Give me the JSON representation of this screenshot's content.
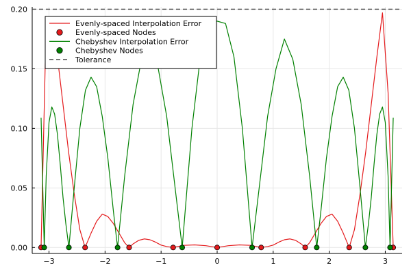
{
  "chart_data": {
    "type": "line",
    "title": "",
    "xlabel": "",
    "ylabel": "",
    "xlim": [
      -3.3,
      3.3
    ],
    "ylim": [
      -0.005,
      0.202
    ],
    "grid": true,
    "legend_position": "top-left",
    "x_ticks": [
      -3,
      -2,
      -1,
      0,
      1,
      2,
      3
    ],
    "x_tick_labels": [
      "−3",
      "−2",
      "−1",
      "0",
      "1",
      "2",
      "3"
    ],
    "y_ticks": [
      0.0,
      0.05,
      0.1,
      0.15,
      0.2
    ],
    "y_tick_labels": [
      "0.00",
      "0.05",
      "0.10",
      "0.15",
      "0.20"
    ],
    "tolerance": 0.2,
    "series": [
      {
        "name": "Evenly-spaced Interpolation Error",
        "kind": "line",
        "color": "#e41a1c",
        "x": [
          -3.1416,
          -3.05,
          -2.95,
          -2.85,
          -2.75,
          -2.65,
          -2.55,
          -2.45,
          -2.3562,
          -2.25,
          -2.15,
          -2.05,
          -1.95,
          -1.85,
          -1.75,
          -1.65,
          -1.5708,
          -1.5,
          -1.4,
          -1.3,
          -1.2,
          -1.1,
          -1.0,
          -0.9,
          -0.7854,
          -0.6,
          -0.4,
          -0.2,
          0.0,
          0.2,
          0.4,
          0.6,
          0.7854,
          0.9,
          1.0,
          1.1,
          1.2,
          1.3,
          1.4,
          1.5,
          1.5708,
          1.65,
          1.75,
          1.85,
          1.95,
          2.05,
          2.15,
          2.25,
          2.3562,
          2.45,
          2.55,
          2.65,
          2.75,
          2.85,
          2.95,
          3.05,
          3.1416
        ],
        "y": [
          0.0,
          0.19,
          0.19,
          0.16,
          0.12,
          0.08,
          0.045,
          0.015,
          0.0,
          0.012,
          0.022,
          0.028,
          0.026,
          0.02,
          0.012,
          0.004,
          0.0,
          0.003,
          0.006,
          0.0072,
          0.0065,
          0.0045,
          0.002,
          0.0008,
          0.0,
          0.0018,
          0.0022,
          0.0015,
          0.0,
          0.0015,
          0.0022,
          0.0018,
          0.0,
          0.0008,
          0.002,
          0.0045,
          0.0065,
          0.0072,
          0.006,
          0.003,
          0.0,
          0.004,
          0.012,
          0.02,
          0.026,
          0.028,
          0.022,
          0.012,
          0.0,
          0.015,
          0.045,
          0.08,
          0.12,
          0.16,
          0.197,
          0.13,
          0.0
        ]
      },
      {
        "name": "Evenly-spaced Nodes",
        "kind": "scatter",
        "color": "#e41a1c",
        "x": [
          -3.1416,
          -2.3562,
          -1.5708,
          -0.7854,
          0.0,
          0.7854,
          1.5708,
          2.3562,
          3.1416
        ],
        "y": [
          0,
          0,
          0,
          0,
          0,
          0,
          0,
          0,
          0
        ]
      },
      {
        "name": "Chebyshev Interpolation Error",
        "kind": "line",
        "color": "#008000",
        "x": [
          -3.1416,
          -3.0853,
          -3.05,
          -3.0,
          -2.95,
          -2.9,
          -2.85,
          -2.8,
          -2.75,
          -2.7,
          -2.6451,
          -2.55,
          -2.45,
          -2.35,
          -2.25,
          -2.15,
          -2.05,
          -1.95,
          -1.85,
          -1.7768,
          -1.65,
          -1.5,
          -1.35,
          -1.2,
          -1.05,
          -0.9,
          -0.75,
          -0.6236,
          -0.45,
          -0.3,
          -0.15,
          0.0,
          0.15,
          0.3,
          0.45,
          0.6236,
          0.75,
          0.9,
          1.05,
          1.2,
          1.35,
          1.5,
          1.65,
          1.7768,
          1.85,
          1.95,
          2.05,
          2.15,
          2.25,
          2.35,
          2.45,
          2.55,
          2.6451,
          2.7,
          2.75,
          2.8,
          2.85,
          2.9,
          2.95,
          3.0,
          3.05,
          3.0853,
          3.1416
        ],
        "y": [
          0.109,
          0.0,
          0.06,
          0.105,
          0.118,
          0.112,
          0.095,
          0.07,
          0.042,
          0.02,
          0.0,
          0.05,
          0.1,
          0.132,
          0.143,
          0.135,
          0.11,
          0.075,
          0.03,
          0.0,
          0.06,
          0.12,
          0.158,
          0.168,
          0.15,
          0.11,
          0.05,
          0.0,
          0.1,
          0.16,
          0.188,
          0.19,
          0.188,
          0.16,
          0.1,
          0.0,
          0.05,
          0.11,
          0.15,
          0.175,
          0.158,
          0.12,
          0.06,
          0.0,
          0.03,
          0.075,
          0.11,
          0.135,
          0.143,
          0.132,
          0.1,
          0.05,
          0.0,
          0.02,
          0.042,
          0.07,
          0.095,
          0.112,
          0.118,
          0.105,
          0.06,
          0.0,
          0.109
        ]
      },
      {
        "name": "Chebyshev Nodes",
        "kind": "scatter",
        "color": "#008000",
        "x": [
          -3.0853,
          -2.6451,
          -1.7768,
          -0.6236,
          0.6236,
          1.7768,
          2.6451,
          3.0853
        ],
        "y": [
          0,
          0,
          0,
          0,
          0,
          0,
          0,
          0
        ]
      },
      {
        "name": "Tolerance",
        "kind": "hline",
        "color": "#444444",
        "dash": "dashed",
        "y": 0.2
      }
    ]
  }
}
